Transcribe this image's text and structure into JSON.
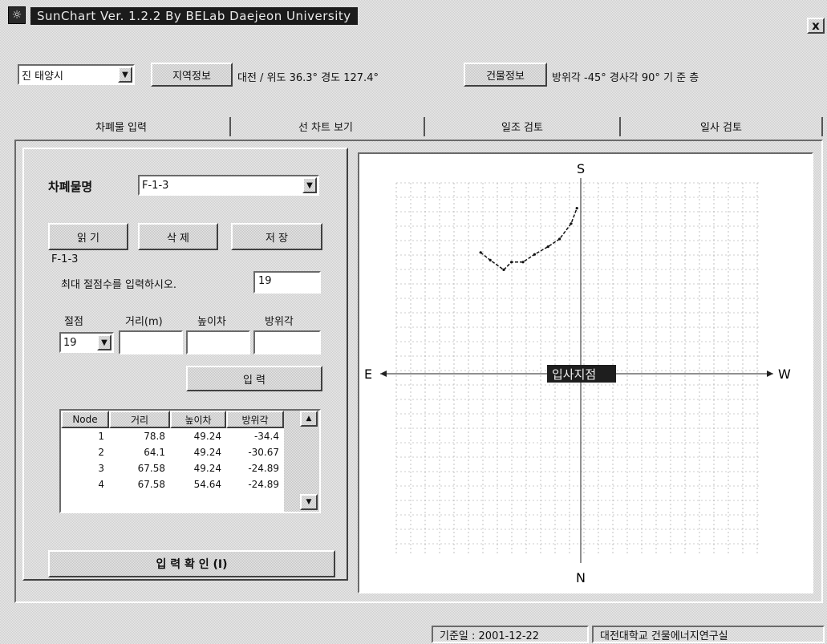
{
  "window": {
    "title": "SunChart Ver. 1.2.2  By BELab Daejeon University",
    "close_glyph": "x"
  },
  "toolbar": {
    "site_select_value": "진 태양시",
    "region_info_button": "지역정보",
    "region_info_text": "대전 / 위도 36.3° 경도 127.4°",
    "building_info_button": "건물정보",
    "building_info_text": "방위각  -45° 경사각 90°   기 준 층"
  },
  "tabs": [
    {
      "label": "차폐물 입력"
    },
    {
      "label": "선 차트 보기"
    },
    {
      "label": "일조 검토"
    },
    {
      "label": "일사 검토"
    }
  ],
  "obstacle": {
    "name_label": "차폐물명",
    "name_value": "F-1-3",
    "read_button": "읽 기",
    "delete_button": "삭 제",
    "save_button": "저 장",
    "current_name": "F-1-3",
    "max_nodes_prompt": "최대 절점수를 입력하시오.",
    "max_nodes_value": "19",
    "col_node": "절점",
    "col_distance": "거리(m)",
    "col_height": "높이차",
    "col_azimuth": "방위각",
    "node_select_value": "19",
    "enter_button": "입      력",
    "confirm_button": "입     력     확     인 (I)"
  },
  "table": {
    "headers": [
      "Node",
      "거리",
      "높이차",
      "방위각"
    ],
    "rows": [
      [
        "1",
        "78.8",
        "49.24",
        "-34.4"
      ],
      [
        "2",
        "64.1",
        "49.24",
        "-30.67"
      ],
      [
        "3",
        "67.58",
        "49.24",
        "-24.89"
      ],
      [
        "4",
        "67.58",
        "54.64",
        "-24.89"
      ]
    ],
    "scroll_up": "▲",
    "scroll_down": "▼"
  },
  "chart": {
    "north": "N",
    "south": "S",
    "east": "E",
    "west": "W",
    "center_label": "입사지점",
    "center_label_bg": "#1e1e1e",
    "line_color": "#111111",
    "grid_color": "#9a9a9a"
  },
  "chart_data": {
    "type": "line",
    "title": "",
    "grid": true,
    "xlim": [
      -1,
      1
    ],
    "ylim": [
      -1,
      1
    ],
    "series": [
      {
        "x": [
          -0.52,
          -0.47,
          -0.4,
          -0.36,
          -0.3,
          -0.24,
          -0.17,
          -0.11,
          -0.05,
          -0.02
        ],
        "y": [
          0.63,
          0.59,
          0.54,
          0.58,
          0.58,
          0.62,
          0.66,
          0.7,
          0.78,
          0.86
        ]
      }
    ]
  },
  "status": {
    "date": "기준일 : 2001-12-22",
    "org": "대전대학교 건물에너지연구실"
  }
}
